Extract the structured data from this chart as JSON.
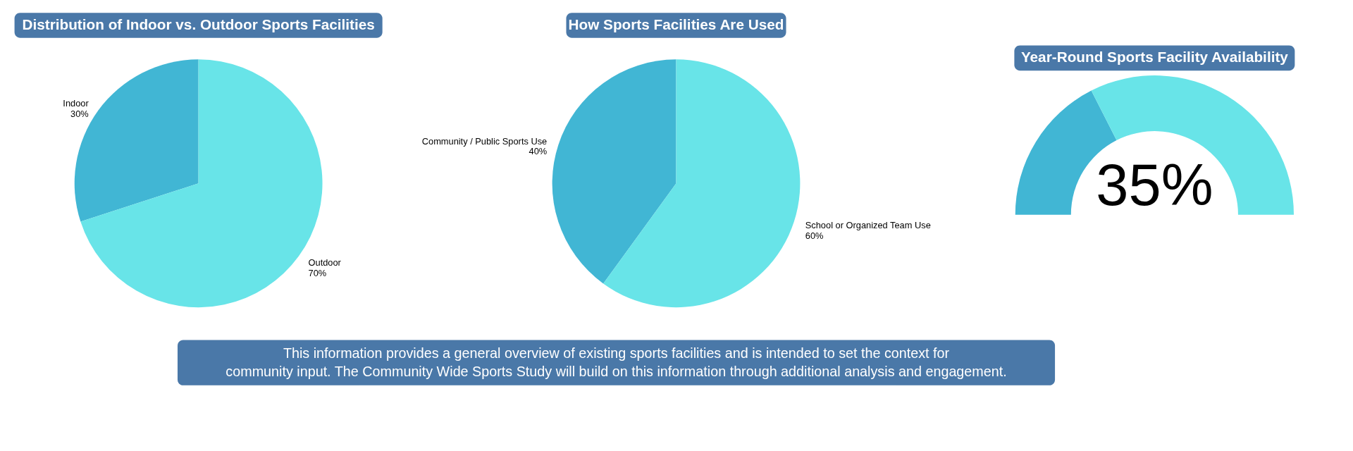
{
  "chart_data": [
    {
      "type": "pie",
      "title": "Distribution of Indoor vs. Outdoor Sports Facilities",
      "categories": [
        "Indoor",
        "Outdoor"
      ],
      "values": [
        30,
        70
      ],
      "value_labels": [
        "30%",
        "70%"
      ],
      "colors": [
        "#41b6d4",
        "#68e4e8"
      ]
    },
    {
      "type": "pie",
      "title": "How Sports Facilities Are Used",
      "categories": [
        "Community / Public Sports Use",
        "School or Organized Team Use"
      ],
      "values": [
        40,
        60
      ],
      "value_labels": [
        "40%",
        "60%"
      ],
      "colors": [
        "#41b6d4",
        "#68e4e8"
      ]
    },
    {
      "type": "donut",
      "title": "Year-Round Sports Facility Availability",
      "categories": [
        null,
        null
      ],
      "values": [
        35,
        65
      ],
      "annotations": [
        "35%"
      ],
      "colors": [
        "#41b6d4",
        "#68e4e8"
      ]
    },
    {
      "type": "other",
      "annotations": [
        "This information provides a general overview of existing sports facilities and is intended to set the context for community input. The Community Wide Sports Study will build on this information through additional analysis and engagement."
      ]
    }
  ]
}
